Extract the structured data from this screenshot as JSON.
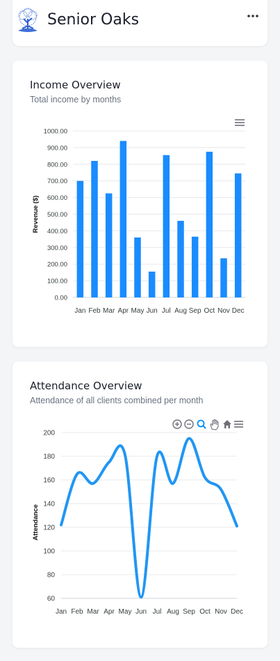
{
  "app": {
    "title": "Senior Oaks"
  },
  "income": {
    "title": "Income Overview",
    "subtitle": "Total income by months",
    "chart_data": {
      "type": "bar",
      "categories": [
        "Jan",
        "Feb",
        "Mar",
        "Apr",
        "May",
        "Jun",
        "Jul",
        "Aug",
        "Sep",
        "Oct",
        "Nov",
        "Dec"
      ],
      "values": [
        700,
        820,
        625,
        940,
        360,
        155,
        855,
        460,
        365,
        875,
        235,
        745
      ],
      "ylabel": "Revenue ($)",
      "ylim": [
        0,
        1000
      ],
      "yticks": [
        "0.00",
        "100.00",
        "200.00",
        "300.00",
        "400.00",
        "500.00",
        "600.00",
        "700.00",
        "800.00",
        "900.00",
        "1000.00"
      ],
      "grid": true,
      "color": "#1a8cff"
    }
  },
  "attendance": {
    "title": "Attendance Overview",
    "subtitle": "Attendance of all clients combined per month",
    "chart_data": {
      "type": "line",
      "categories": [
        "Jan",
        "Feb",
        "Mar",
        "Apr",
        "May",
        "Jun",
        "Jul",
        "Aug",
        "Sep",
        "Oct",
        "Nov",
        "Dec"
      ],
      "values": [
        122,
        165,
        157,
        175,
        181,
        61,
        180,
        157,
        195,
        162,
        152,
        121
      ],
      "ylabel": "Attendance",
      "ylim": [
        60,
        200
      ],
      "yticks": [
        "60",
        "80",
        "100",
        "120",
        "140",
        "160",
        "180",
        "200"
      ],
      "grid": true,
      "color": "#2196f3"
    }
  },
  "icons": {
    "menu": "hamburger-menu-icon",
    "zoom_in": "zoom-in-icon",
    "zoom_out": "zoom-out-icon",
    "selection_zoom": "magnifier-icon",
    "pan": "hand-icon",
    "reset": "home-icon"
  }
}
